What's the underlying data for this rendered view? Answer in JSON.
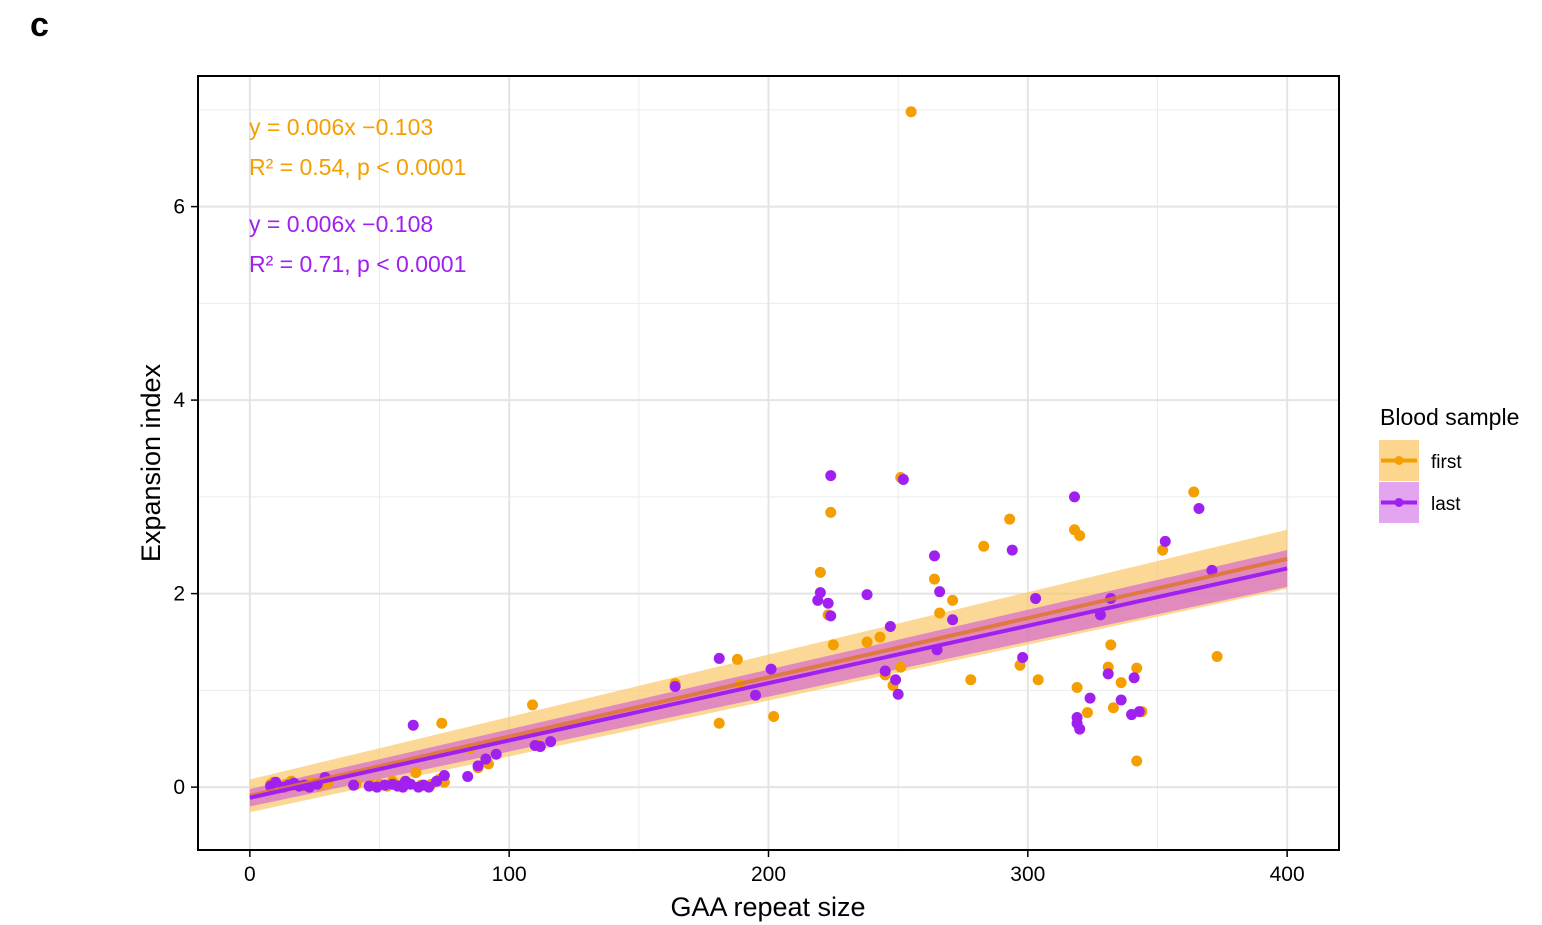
{
  "panel_label": "c",
  "chart_data": {
    "type": "scatter",
    "xlabel": "GAA repeat size",
    "ylabel": "Expansion index",
    "xlim": [
      -20,
      420
    ],
    "ylim": [
      -0.65,
      7.35
    ],
    "x_ticks": [
      0,
      100,
      200,
      300,
      400
    ],
    "y_ticks": [
      0,
      2,
      4,
      6
    ],
    "grid": true,
    "legend": {
      "title": "Blood sample",
      "position": "right",
      "entries": [
        "first",
        "last"
      ]
    },
    "annotations": [
      {
        "text": "y = 0.006x −0.103",
        "series": "first"
      },
      {
        "text": "R² = 0.54, p < 0.0001",
        "series": "first"
      },
      {
        "text": "y = 0.006x −0.108",
        "series": "last"
      },
      {
        "text": "R² = 0.71, p < 0.0001",
        "series": "last"
      }
    ],
    "series": [
      {
        "name": "first",
        "color": "#F59E00",
        "band_color": "#FBC869",
        "fit": {
          "x": [
            0,
            400
          ],
          "y": [
            -0.09,
            2.36
          ],
          "ci_low": [
            -0.26,
            2.05
          ],
          "ci_high": [
            0.08,
            2.66
          ]
        },
        "points": [
          [
            8,
            0.03
          ],
          [
            9,
            0.05
          ],
          [
            12,
            0.01
          ],
          [
            14,
            0.03
          ],
          [
            16,
            0.06
          ],
          [
            18,
            0.02
          ],
          [
            20,
            0.01
          ],
          [
            22,
            0.03
          ],
          [
            24,
            0.05
          ],
          [
            27,
            0.02
          ],
          [
            30,
            0.04
          ],
          [
            41,
            0.03
          ],
          [
            47,
            0.02
          ],
          [
            50,
            0.03
          ],
          [
            53,
            0.01
          ],
          [
            55,
            0.06
          ],
          [
            58,
            0.02
          ],
          [
            61,
            0.04
          ],
          [
            64,
            0.15
          ],
          [
            66,
            0.02
          ],
          [
            70,
            0.03
          ],
          [
            73,
            0.08
          ],
          [
            74,
            0.66
          ],
          [
            75,
            0.05
          ],
          [
            85,
            0.4
          ],
          [
            88,
            0.2
          ],
          [
            92,
            0.24
          ],
          [
            109,
            0.85
          ],
          [
            111,
            0.44
          ],
          [
            112,
            0.42
          ],
          [
            164,
            1.07
          ],
          [
            181,
            0.66
          ],
          [
            188,
            1.32
          ],
          [
            189,
            1.06
          ],
          [
            202,
            0.73
          ],
          [
            220,
            2.22
          ],
          [
            223,
            1.78
          ],
          [
            224,
            2.84
          ],
          [
            225,
            1.47
          ],
          [
            238,
            1.5
          ],
          [
            243,
            1.55
          ],
          [
            245,
            1.16
          ],
          [
            248,
            1.05
          ],
          [
            251,
            3.2
          ],
          [
            251,
            1.24
          ],
          [
            255,
            6.98
          ],
          [
            264,
            2.15
          ],
          [
            266,
            1.8
          ],
          [
            271,
            1.93
          ],
          [
            278,
            1.11
          ],
          [
            283,
            2.49
          ],
          [
            293,
            2.77
          ],
          [
            297,
            1.26
          ],
          [
            304,
            1.11
          ],
          [
            318,
            2.66
          ],
          [
            319,
            1.03
          ],
          [
            320,
            2.6
          ],
          [
            323,
            0.77
          ],
          [
            331,
            1.24
          ],
          [
            332,
            1.47
          ],
          [
            333,
            0.82
          ],
          [
            336,
            1.08
          ],
          [
            342,
            1.23
          ],
          [
            342,
            0.27
          ],
          [
            344,
            0.78
          ],
          [
            352,
            2.45
          ],
          [
            364,
            3.05
          ],
          [
            373,
            1.35
          ]
        ]
      },
      {
        "name": "last",
        "color": "#A020F0",
        "band_color": "#C84BE0",
        "fit": {
          "x": [
            0,
            400
          ],
          "y": [
            -0.11,
            2.26
          ],
          "ci_low": [
            -0.2,
            2.07
          ],
          "ci_high": [
            -0.02,
            2.45
          ]
        },
        "points": [
          [
            8,
            0.01
          ],
          [
            10,
            0.05
          ],
          [
            13,
            0.0
          ],
          [
            15,
            0.02
          ],
          [
            17,
            0.04
          ],
          [
            19,
            0.01
          ],
          [
            21,
            0.02
          ],
          [
            23,
            0.0
          ],
          [
            26,
            0.03
          ],
          [
            29,
            0.1
          ],
          [
            40,
            0.02
          ],
          [
            46,
            0.01
          ],
          [
            49,
            0.0
          ],
          [
            52,
            0.02
          ],
          [
            55,
            0.03
          ],
          [
            57,
            0.01
          ],
          [
            59,
            0.0
          ],
          [
            60,
            0.06
          ],
          [
            62,
            0.03
          ],
          [
            63,
            0.64
          ],
          [
            65,
            0.0
          ],
          [
            67,
            0.02
          ],
          [
            69,
            0.0
          ],
          [
            72,
            0.06
          ],
          [
            75,
            0.12
          ],
          [
            84,
            0.11
          ],
          [
            88,
            0.22
          ],
          [
            91,
            0.29
          ],
          [
            95,
            0.34
          ],
          [
            110,
            0.43
          ],
          [
            112,
            0.42
          ],
          [
            116,
            0.47
          ],
          [
            164,
            1.04
          ],
          [
            181,
            1.33
          ],
          [
            195,
            0.95
          ],
          [
            201,
            1.22
          ],
          [
            219,
            1.93
          ],
          [
            220,
            2.01
          ],
          [
            223,
            1.9
          ],
          [
            224,
            1.77
          ],
          [
            224,
            3.22
          ],
          [
            238,
            1.99
          ],
          [
            245,
            1.2
          ],
          [
            247,
            1.66
          ],
          [
            249,
            1.11
          ],
          [
            250,
            0.96
          ],
          [
            252,
            3.18
          ],
          [
            264,
            2.39
          ],
          [
            265,
            1.42
          ],
          [
            266,
            2.02
          ],
          [
            271,
            1.73
          ],
          [
            294,
            2.45
          ],
          [
            298,
            1.34
          ],
          [
            303,
            1.95
          ],
          [
            318,
            3.0
          ],
          [
            319,
            0.66
          ],
          [
            319,
            0.72
          ],
          [
            320,
            0.6
          ],
          [
            324,
            0.92
          ],
          [
            328,
            1.78
          ],
          [
            331,
            1.17
          ],
          [
            332,
            1.95
          ],
          [
            336,
            0.9
          ],
          [
            340,
            0.75
          ],
          [
            341,
            1.13
          ],
          [
            343,
            0.78
          ],
          [
            353,
            2.54
          ],
          [
            366,
            2.88
          ],
          [
            371,
            2.24
          ]
        ]
      }
    ]
  }
}
